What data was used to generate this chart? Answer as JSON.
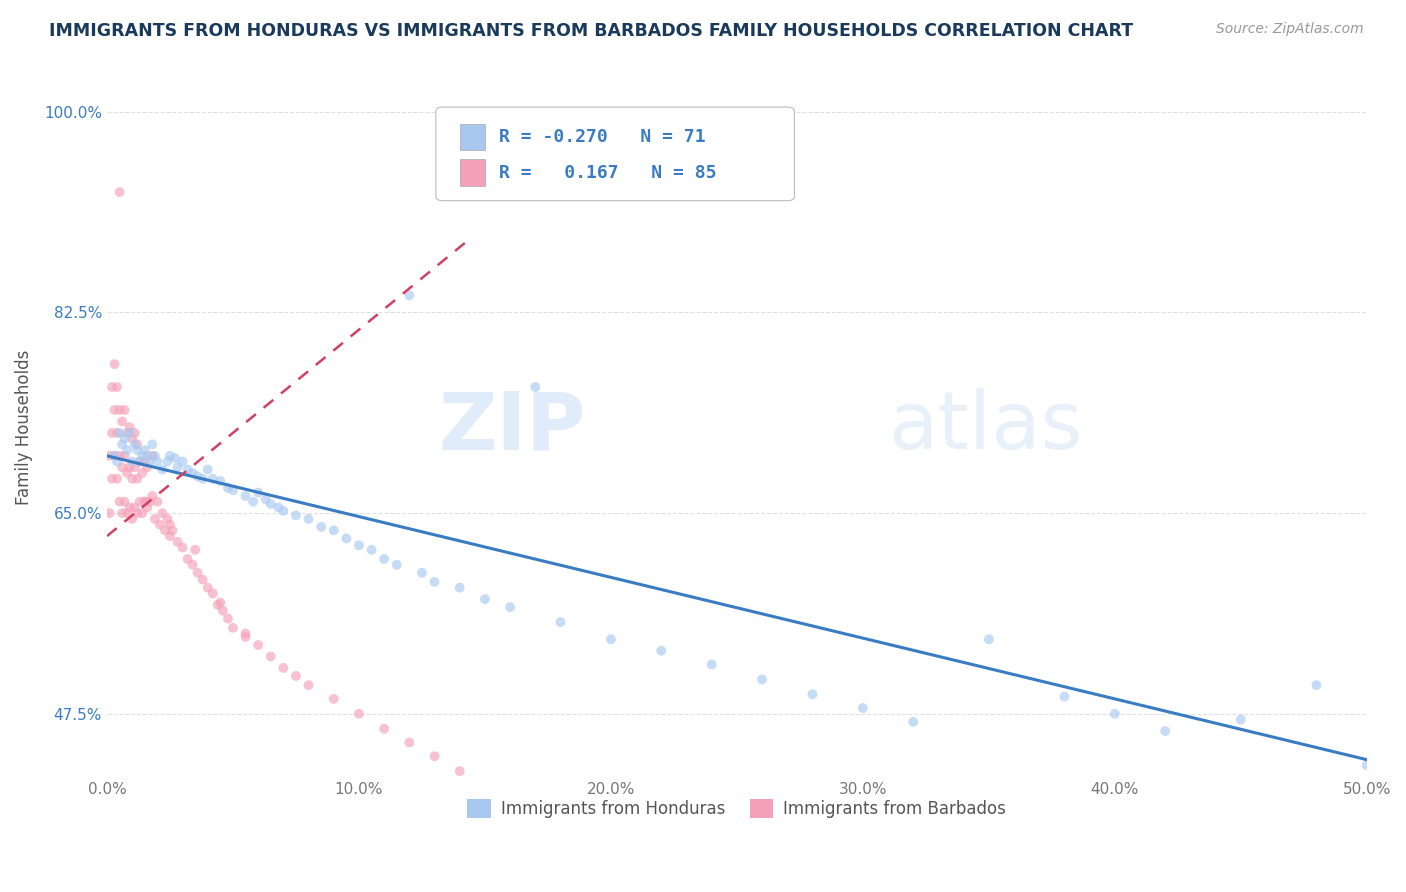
{
  "title": "IMMIGRANTS FROM HONDURAS VS IMMIGRANTS FROM BARBADOS FAMILY HOUSEHOLDS CORRELATION CHART",
  "source": "Source: ZipAtlas.com",
  "ylabel": "Family Households",
  "xlim": [
    0.0,
    0.5
  ],
  "ylim": [
    0.42,
    1.03
  ],
  "xtick_labels": [
    "0.0%",
    "10.0%",
    "20.0%",
    "30.0%",
    "40.0%",
    "50.0%"
  ],
  "xtick_vals": [
    0.0,
    0.1,
    0.2,
    0.3,
    0.4,
    0.5
  ],
  "ytick_labels": [
    "47.5%",
    "65.0%",
    "82.5%",
    "100.0%"
  ],
  "ytick_vals": [
    0.475,
    0.65,
    0.825,
    1.0
  ],
  "color_honduras": "#a8c8f0",
  "color_barbados": "#f4a0b8",
  "line_color_honduras": "#3a7cc4",
  "line_color_barbados": "#d04060",
  "watermark_zip": "ZIP",
  "watermark_atlas": "atlas",
  "title_color": "#1a3a5c",
  "source_color": "#999999",
  "background_color": "#ffffff",
  "grid_color": "#e0e0e0",
  "scatter_size": 50,
  "scatter_alpha": 0.65,
  "honduras_x": [
    0.003,
    0.004,
    0.005,
    0.006,
    0.007,
    0.008,
    0.009,
    0.01,
    0.011,
    0.012,
    0.013,
    0.014,
    0.015,
    0.016,
    0.017,
    0.018,
    0.019,
    0.02,
    0.022,
    0.024,
    0.025,
    0.027,
    0.028,
    0.03,
    0.032,
    0.034,
    0.036,
    0.038,
    0.04,
    0.042,
    0.045,
    0.048,
    0.05,
    0.055,
    0.058,
    0.06,
    0.063,
    0.065,
    0.068,
    0.07,
    0.075,
    0.08,
    0.085,
    0.09,
    0.095,
    0.1,
    0.105,
    0.11,
    0.115,
    0.12,
    0.125,
    0.13,
    0.14,
    0.15,
    0.16,
    0.17,
    0.18,
    0.2,
    0.22,
    0.24,
    0.26,
    0.28,
    0.3,
    0.32,
    0.35,
    0.38,
    0.4,
    0.42,
    0.45,
    0.48,
    0.5
  ],
  "honduras_y": [
    0.7,
    0.695,
    0.72,
    0.71,
    0.715,
    0.705,
    0.72,
    0.695,
    0.71,
    0.705,
    0.695,
    0.7,
    0.705,
    0.7,
    0.695,
    0.71,
    0.7,
    0.695,
    0.688,
    0.695,
    0.7,
    0.698,
    0.69,
    0.695,
    0.688,
    0.685,
    0.682,
    0.68,
    0.688,
    0.68,
    0.678,
    0.672,
    0.67,
    0.665,
    0.66,
    0.668,
    0.662,
    0.658,
    0.655,
    0.652,
    0.648,
    0.645,
    0.638,
    0.635,
    0.628,
    0.622,
    0.618,
    0.61,
    0.605,
    0.84,
    0.598,
    0.59,
    0.585,
    0.575,
    0.568,
    0.76,
    0.555,
    0.54,
    0.53,
    0.518,
    0.505,
    0.492,
    0.48,
    0.468,
    0.54,
    0.49,
    0.475,
    0.46,
    0.47,
    0.5,
    0.43
  ],
  "barbados_x": [
    0.001,
    0.001,
    0.002,
    0.002,
    0.002,
    0.003,
    0.003,
    0.003,
    0.004,
    0.004,
    0.004,
    0.005,
    0.005,
    0.005,
    0.006,
    0.006,
    0.006,
    0.007,
    0.007,
    0.007,
    0.008,
    0.008,
    0.008,
    0.009,
    0.009,
    0.009,
    0.01,
    0.01,
    0.01,
    0.011,
    0.011,
    0.011,
    0.012,
    0.012,
    0.012,
    0.013,
    0.013,
    0.014,
    0.014,
    0.015,
    0.015,
    0.016,
    0.016,
    0.017,
    0.018,
    0.018,
    0.019,
    0.02,
    0.021,
    0.022,
    0.023,
    0.024,
    0.025,
    0.026,
    0.028,
    0.03,
    0.032,
    0.034,
    0.036,
    0.038,
    0.04,
    0.042,
    0.044,
    0.046,
    0.048,
    0.05,
    0.055,
    0.06,
    0.065,
    0.07,
    0.075,
    0.08,
    0.09,
    0.1,
    0.11,
    0.12,
    0.13,
    0.14,
    0.15,
    0.015,
    0.035,
    0.025,
    0.045,
    0.055,
    0.005
  ],
  "barbados_y": [
    0.7,
    0.65,
    0.68,
    0.72,
    0.76,
    0.7,
    0.74,
    0.78,
    0.68,
    0.72,
    0.76,
    0.66,
    0.7,
    0.74,
    0.65,
    0.69,
    0.73,
    0.66,
    0.7,
    0.74,
    0.65,
    0.685,
    0.72,
    0.655,
    0.69,
    0.725,
    0.645,
    0.68,
    0.715,
    0.655,
    0.69,
    0.72,
    0.65,
    0.68,
    0.71,
    0.66,
    0.695,
    0.65,
    0.685,
    0.66,
    0.695,
    0.655,
    0.69,
    0.66,
    0.665,
    0.7,
    0.645,
    0.66,
    0.64,
    0.65,
    0.635,
    0.645,
    0.63,
    0.635,
    0.625,
    0.62,
    0.61,
    0.605,
    0.598,
    0.592,
    0.585,
    0.58,
    0.57,
    0.565,
    0.558,
    0.55,
    0.542,
    0.535,
    0.525,
    0.515,
    0.508,
    0.5,
    0.488,
    0.475,
    0.462,
    0.45,
    0.438,
    0.425,
    0.415,
    0.66,
    0.618,
    0.64,
    0.572,
    0.545,
    0.93
  ],
  "hline_x0": 0.0,
  "hline_x1": 0.5,
  "hline_y0": 0.7,
  "hline_slope": -0.53,
  "bline_x0": 0.0,
  "bline_x1": 0.145,
  "bline_y0": 0.63,
  "bline_slope": 1.8
}
